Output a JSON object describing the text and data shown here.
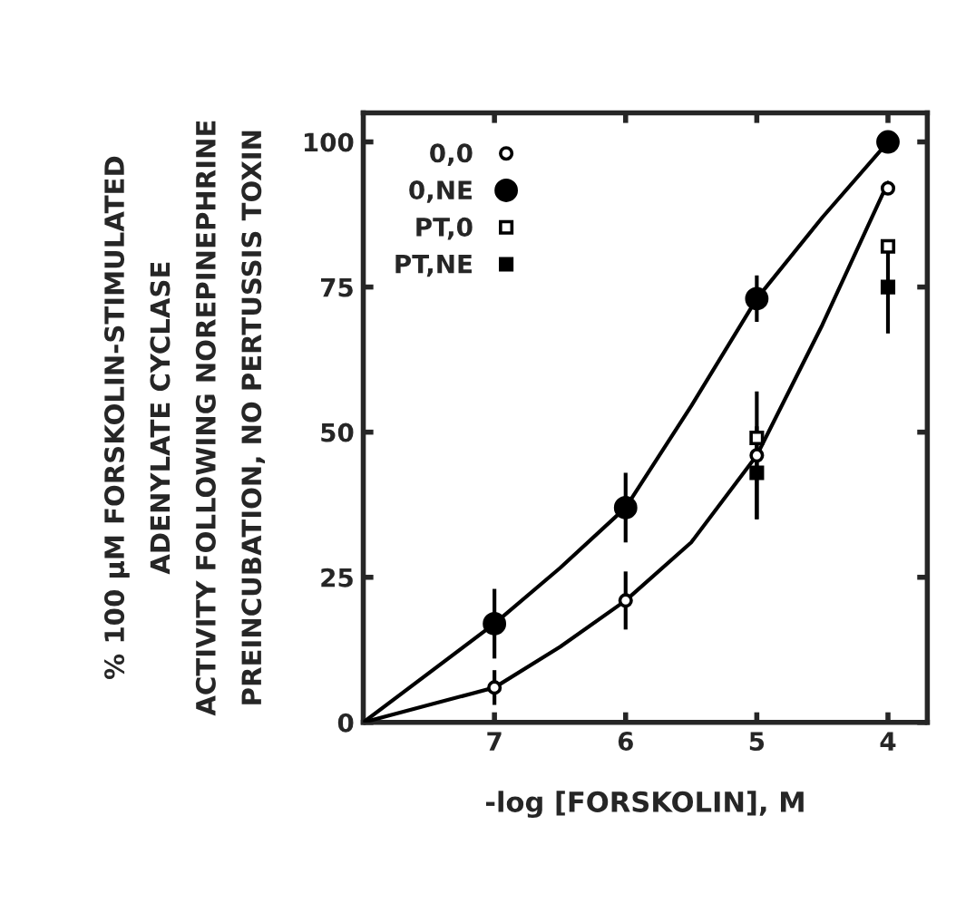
{
  "chart_data": {
    "type": "scatter",
    "xlabel": "-log [FORSKOLIN], M",
    "ylabel": "% 100 μM FORSKOLIN-STIMULATED\nADENYLATE CYCLASE\nACTIVITY FOLLOWING NOREPINEPHRINE\nPREINCUBATION, NO PERTUSSIS TOXIN",
    "xlim": [
      8,
      3.7
    ],
    "xticks": [
      7,
      6,
      5,
      4
    ],
    "ylim": [
      0,
      105
    ],
    "yticks": [
      0,
      25,
      50,
      75,
      100
    ],
    "grid": false,
    "legend": "top left",
    "series": [
      {
        "name": "0,0",
        "color": "#ffffff",
        "marker": "circle",
        "x": [
          7,
          6,
          5,
          4
        ],
        "values": [
          6,
          21,
          46,
          92
        ],
        "errors": [
          3,
          5,
          11,
          null
        ]
      },
      {
        "name": "0,NE",
        "color": "#000000",
        "marker": "circle",
        "x": [
          7,
          6,
          5,
          4
        ],
        "values": [
          17,
          37,
          73,
          100
        ],
        "errors": [
          6,
          6,
          4,
          null
        ]
      },
      {
        "name": "PT,0",
        "color": "#ffffff",
        "marker": "square",
        "x": [
          5,
          4
        ],
        "values": [
          49,
          82
        ]
      },
      {
        "name": "PT,NE",
        "color": "#000000",
        "marker": "square",
        "x": [
          5,
          4
        ],
        "values": [
          43,
          75
        ],
        "errors": [
          8,
          8
        ]
      },
      {
        "type": "line",
        "color": "#000000",
        "x": [
          8,
          7,
          6.5,
          6,
          5.5,
          5,
          4.5,
          4
        ],
        "values": [
          0,
          17,
          26.6,
          37,
          54.5,
          73,
          87,
          100
        ]
      },
      {
        "type": "line",
        "color": "#000000",
        "x": [
          8,
          7.5,
          7,
          6.5,
          6,
          5.5,
          5,
          4.5,
          4
        ],
        "values": [
          0,
          3,
          6,
          13,
          21,
          31,
          46,
          68.5,
          93
        ]
      }
    ]
  }
}
